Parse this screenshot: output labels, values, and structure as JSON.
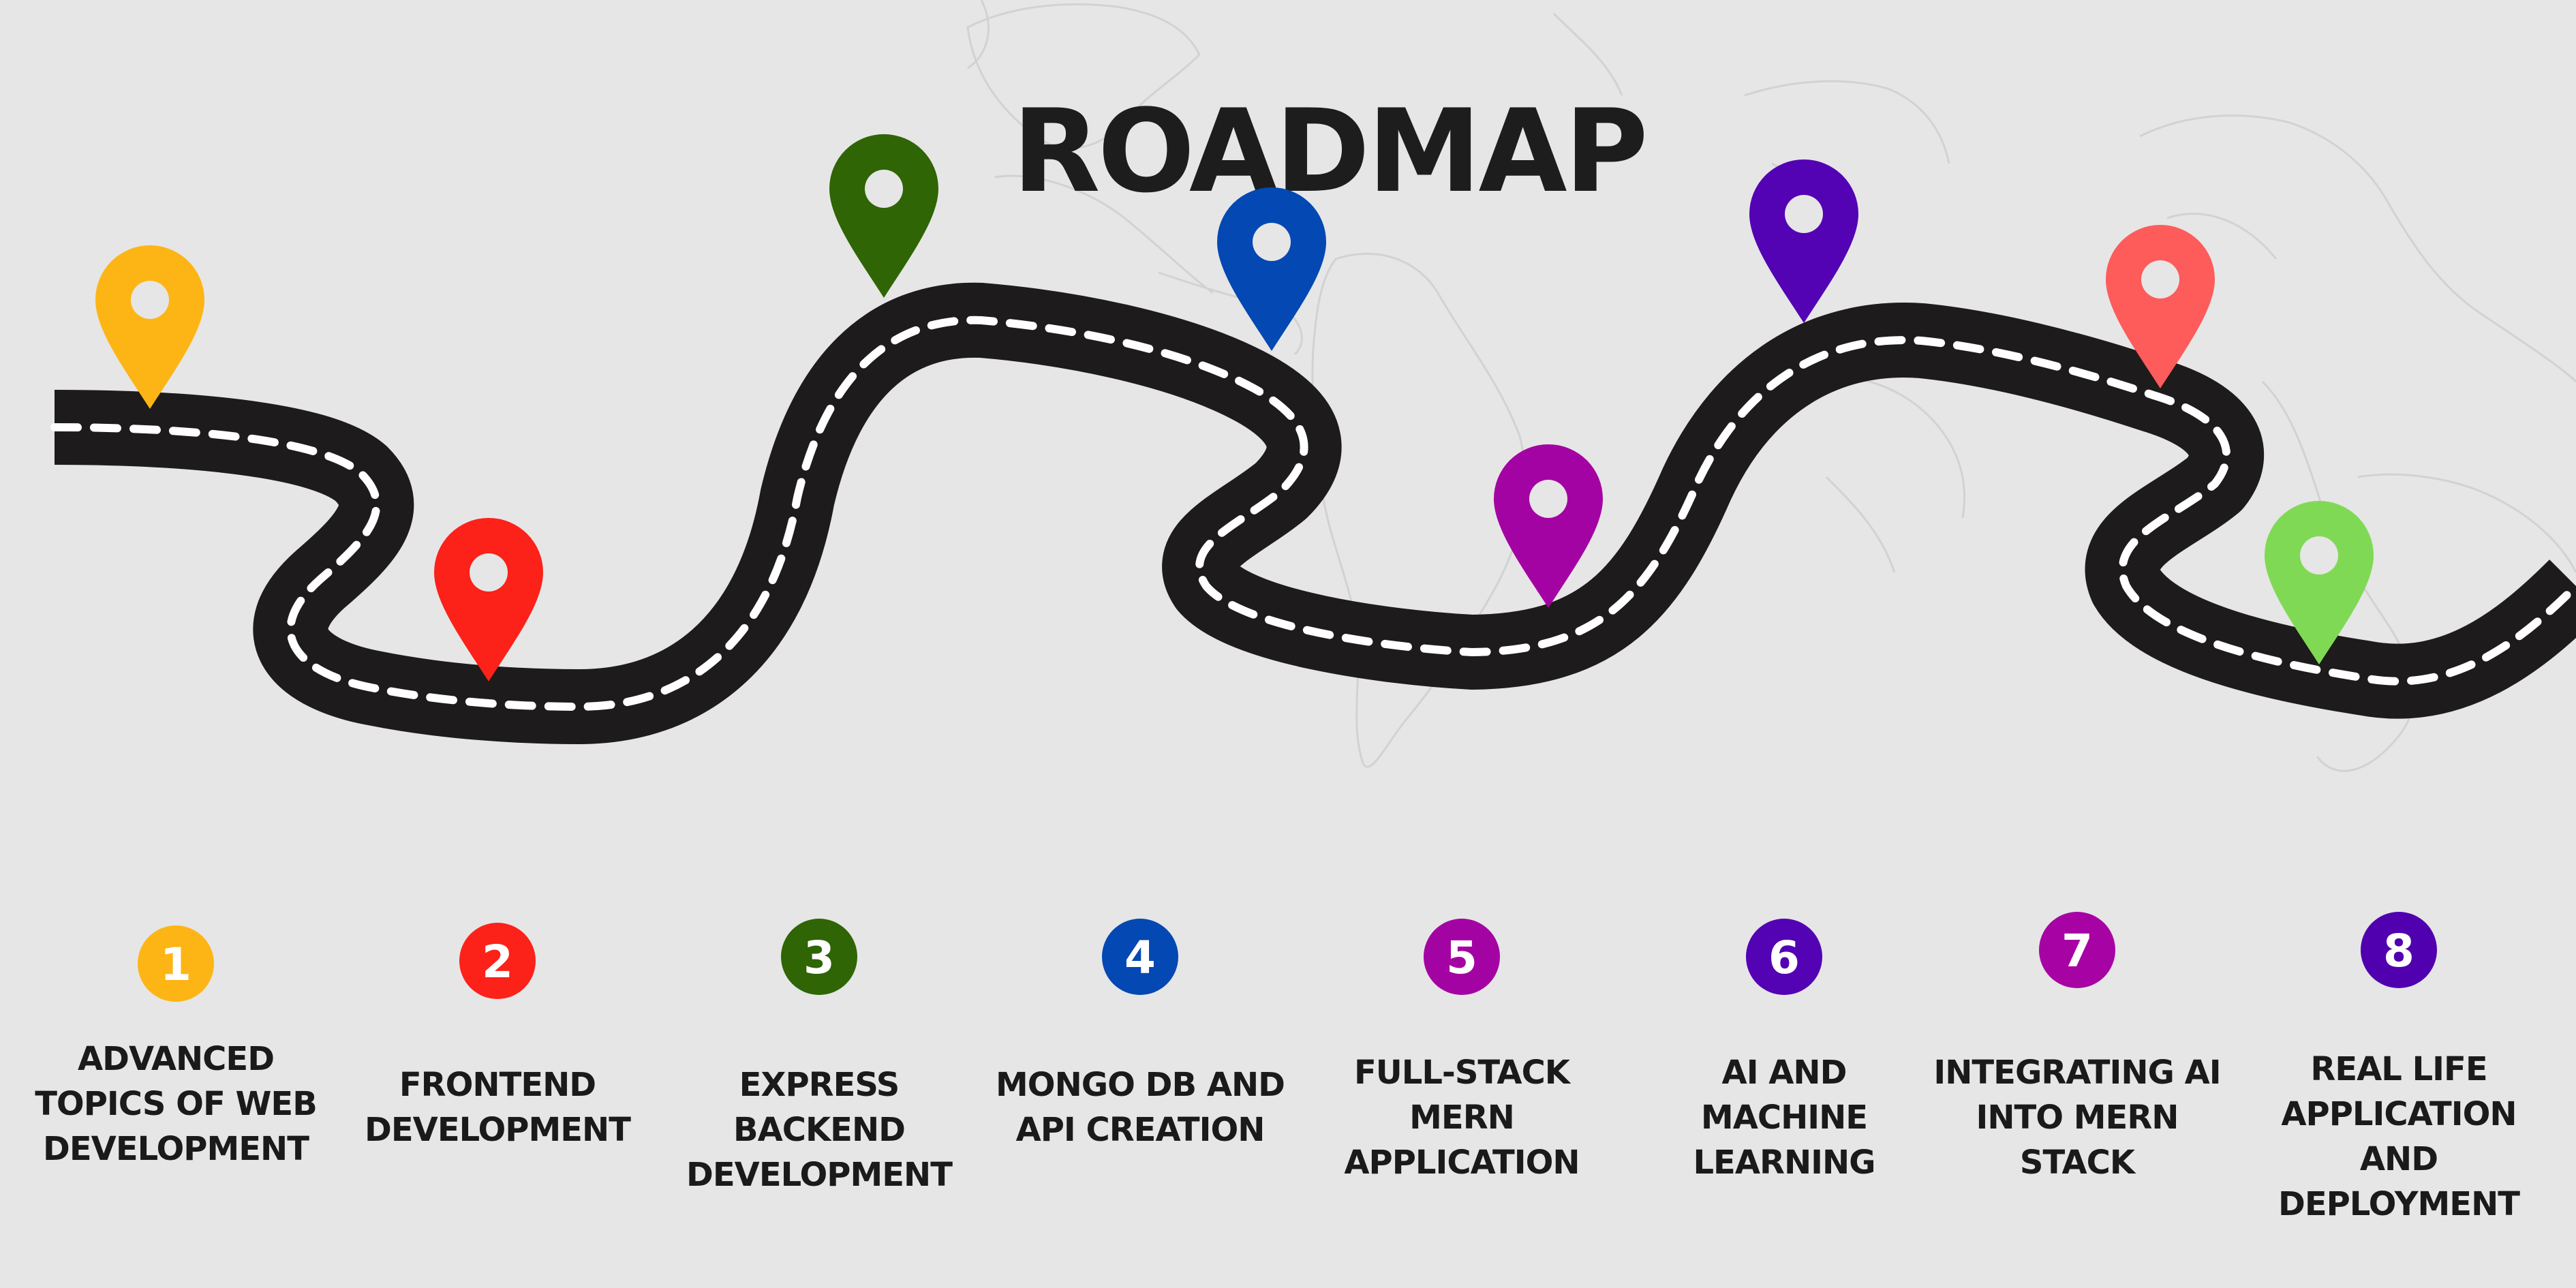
{
  "title": "ROADMAP",
  "colors": {
    "background": "#e6e6e6",
    "road": "#1d1b1b",
    "road_dashes": "#ffffff",
    "map_lines": "#d2d2d2"
  },
  "steps": [
    {
      "number": "1",
      "label": [
        "ADVANCED",
        "TOPICS OF WEB",
        "DEVELOPMENT"
      ],
      "color": "#fdb515",
      "icon": "map-pin-icon"
    },
    {
      "number": "2",
      "label": [
        "FRONTEND",
        "DEVELOPMENT"
      ],
      "color": "#fc2119",
      "icon": "map-pin-icon"
    },
    {
      "number": "3",
      "label": [
        "EXPRESS",
        "BACKEND",
        "DEVELOPMENT"
      ],
      "color": "#2f6504",
      "icon": "map-pin-icon"
    },
    {
      "number": "4",
      "label": [
        "MONGO DB AND",
        "API CREATION"
      ],
      "color": "#0348b3",
      "icon": "map-pin-icon"
    },
    {
      "number": "5",
      "label": [
        "FULL-STACK",
        "MERN",
        "APPLICATION"
      ],
      "color": "#a403a3",
      "icon": "map-pin-icon"
    },
    {
      "number": "6",
      "label": [
        "AI AND",
        "MACHINE",
        "LEARNING"
      ],
      "color": "#5302b4",
      "icon": "map-pin-icon"
    },
    {
      "number": "7",
      "label": [
        "INTEGRATING AI",
        "INTO MERN",
        "STACK"
      ],
      "color": "#a703a4",
      "icon": "map-pin-icon"
    },
    {
      "number": "8",
      "label": [
        "REAL LIFE",
        "APPLICATION",
        "AND",
        "DEPLOYMENT"
      ],
      "color": "#5000af",
      "icon": "map-pin-icon"
    }
  ],
  "markers": [
    {
      "color": "#fdb515"
    },
    {
      "color": "#fc2119"
    },
    {
      "color": "#2f6504"
    },
    {
      "color": "#0348b3"
    },
    {
      "color": "#a403a3"
    },
    {
      "color": "#5302b4"
    },
    {
      "color": "#fe5b5b"
    },
    {
      "color": "#80d955"
    }
  ]
}
